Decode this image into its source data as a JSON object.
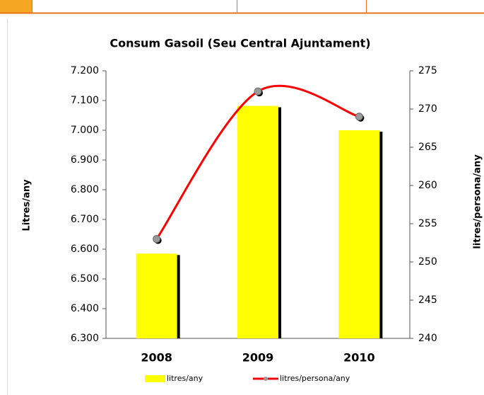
{
  "chart_data": {
    "type": "bar",
    "title": "Consum Gasoil (Seu Central Ajuntament)",
    "ylabel": "Litres/any",
    "y2label": "litres/persona/any",
    "categories": [
      "2008",
      "2009",
      "2010"
    ],
    "series": [
      {
        "name": "litres/any",
        "color": "#ffff00",
        "values": [
          6585,
          7082,
          7000
        ]
      },
      {
        "name": "litres/persona/any",
        "color": "#ff0000",
        "type": "line",
        "axis": "y2",
        "values": [
          253,
          272.3,
          269
        ]
      }
    ],
    "ylim": [
      6300,
      7200
    ],
    "yticks": [
      {
        "value": 6300,
        "label": "6.300"
      },
      {
        "value": 6400,
        "label": "6.400"
      },
      {
        "value": 6500,
        "label": "6.500"
      },
      {
        "value": 6600,
        "label": "6.600"
      },
      {
        "value": 6700,
        "label": "6.700"
      },
      {
        "value": 6800,
        "label": "6.800"
      },
      {
        "value": 6900,
        "label": "6.900"
      },
      {
        "value": 7000,
        "label": "7.000"
      },
      {
        "value": 7100,
        "label": "7.100"
      },
      {
        "value": 7200,
        "label": "7.200"
      }
    ],
    "y2lim": [
      240,
      275
    ],
    "y2ticks": [
      240,
      245,
      250,
      255,
      260,
      265,
      270,
      275
    ],
    "legend": "bottom"
  }
}
